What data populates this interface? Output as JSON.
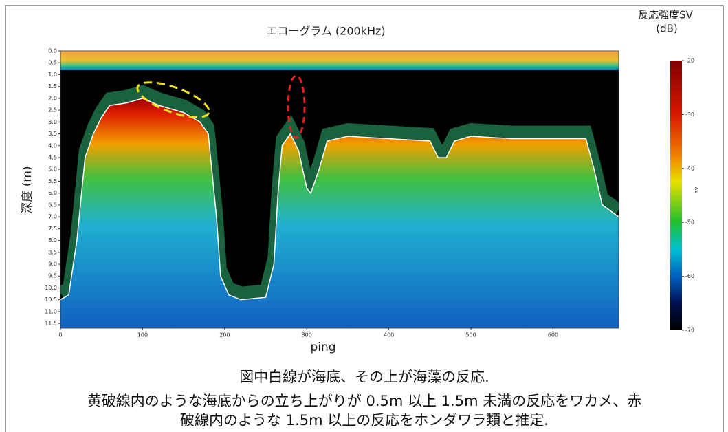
{
  "chart_data": {
    "type": "echogram",
    "title": "エコーグラム (200kHz)",
    "x_label": "ping",
    "y_label": "深度 (m)",
    "xlim": [
      0,
      680
    ],
    "xticks": [
      0,
      100,
      200,
      300,
      400,
      500,
      600
    ],
    "ylim": [
      0,
      11.7
    ],
    "y_inverted": true,
    "yticks": [
      {
        "value": 0,
        "label": "0.0"
      },
      0.5,
      {
        "value": 1,
        "label": "1.0"
      },
      1.5,
      {
        "value": 2,
        "label": "2.0"
      },
      2.5,
      {
        "value": 3,
        "label": "3.0"
      },
      3.5,
      {
        "value": 4,
        "label": "4.0"
      },
      4.5,
      {
        "value": 5,
        "label": "5.0"
      },
      5.5,
      {
        "value": 6,
        "label": "6.0"
      },
      6.5,
      {
        "value": 7,
        "label": "7.0"
      },
      7.5,
      {
        "value": 8,
        "label": "8.0"
      },
      8.5,
      {
        "value": 9,
        "label": "9.0"
      },
      9.5,
      {
        "value": 10,
        "label": "10.0"
      },
      10.5,
      {
        "value": 11,
        "label": "11.0"
      },
      11.5
    ],
    "seabed": {
      "color": "#ffffff",
      "x": [
        0,
        10,
        20,
        30,
        40,
        50,
        60,
        80,
        100,
        120,
        150,
        170,
        180,
        190,
        195,
        205,
        220,
        250,
        260,
        265,
        270,
        280,
        290,
        300,
        305,
        315,
        325,
        350,
        400,
        450,
        460,
        470,
        480,
        500,
        550,
        600,
        640,
        650,
        660,
        680
      ],
      "values": [
        10.5,
        10.3,
        8,
        4.5,
        3.5,
        2.8,
        2.3,
        2.2,
        2.0,
        2.3,
        2.6,
        3.0,
        3.5,
        7,
        9.5,
        10.3,
        10.5,
        10.4,
        9.0,
        6,
        4.0,
        3.5,
        4.2,
        5.8,
        6.0,
        5.0,
        3.8,
        3.6,
        3.7,
        3.8,
        4.5,
        4.5,
        3.8,
        3.6,
        3.7,
        3.7,
        3.7,
        5.0,
        6.5,
        7.0
      ]
    },
    "colorbar": {
      "title": "反応強度SV",
      "unit": "(dB)",
      "label": "sv",
      "lim": [
        -70,
        -20
      ],
      "ticks": [
        -70,
        -60,
        -50,
        -40,
        -30,
        -20
      ]
    },
    "caption": [
      "図中白線が海底、その上が海藻の反応.",
      "黄破線内のような海底からの立ち上がりが 0.5m 以上 1.5m 未満の反応をワカメ、赤",
      "破線内のような 1.5m 以上の反応をホンダワラ類と推定."
    ]
  }
}
